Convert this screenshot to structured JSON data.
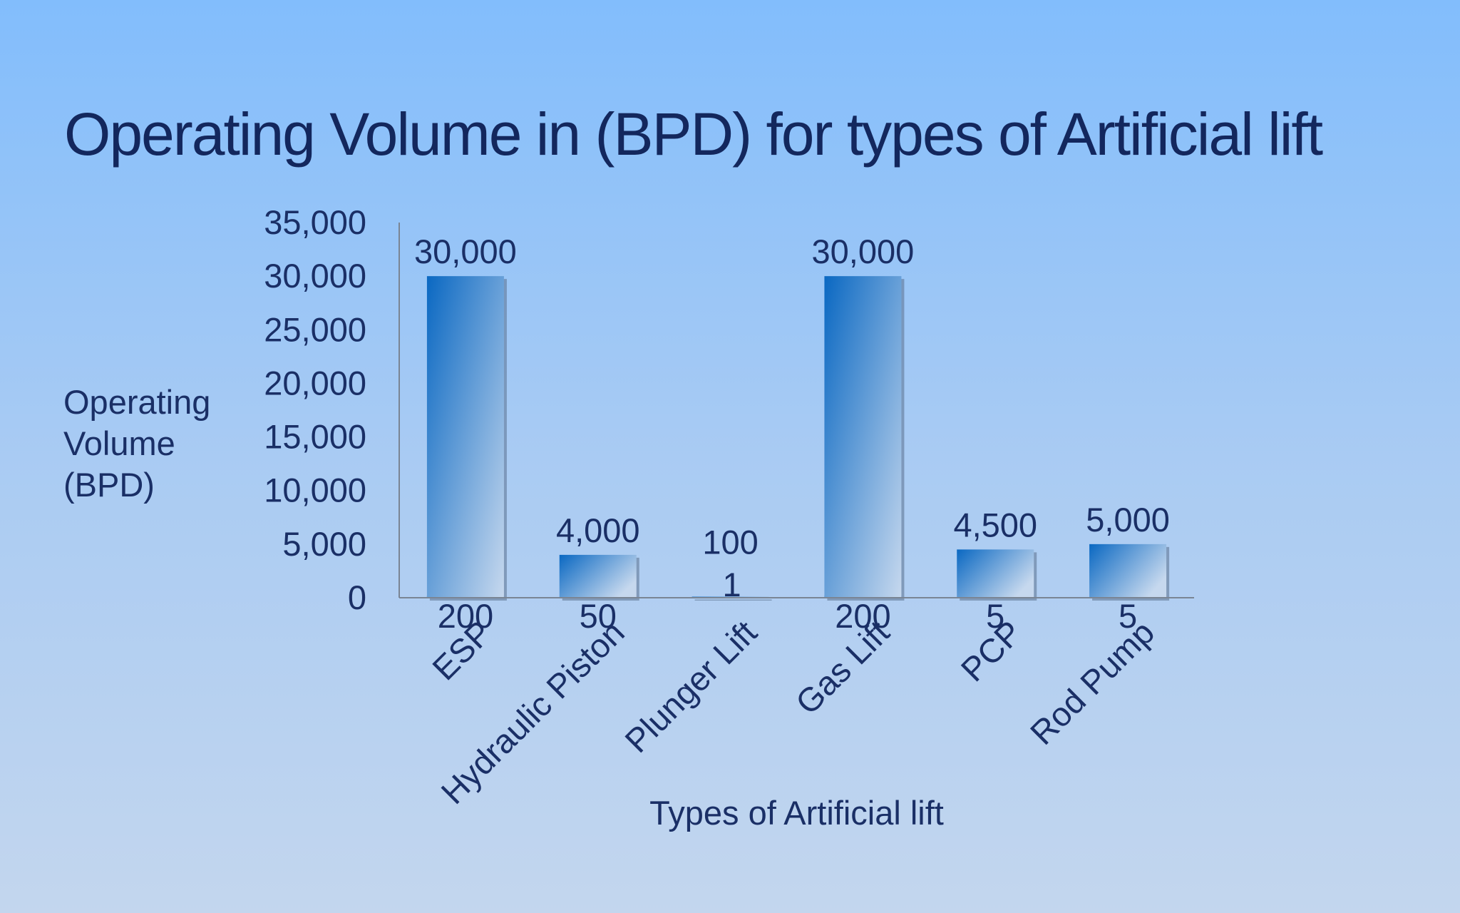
{
  "chart_data": {
    "type": "bar",
    "title": "Operating Volume in (BPD) for types of Artificial lift",
    "xlabel": "Types of Artificial lift",
    "ylabel": [
      "Operating",
      "Volume",
      "(BPD)"
    ],
    "categories": [
      "ESP",
      "Hydraulic Piston",
      "Plunger Lift",
      "Gas Lift",
      "PCP",
      "Rod Pump"
    ],
    "series": [
      {
        "values": [
          200,
          50,
          1,
          200,
          5,
          5
        ],
        "labels": [
          "200",
          "50",
          "1",
          "200",
          "5",
          "5"
        ]
      },
      {
        "values": [
          30000,
          4000,
          100,
          30000,
          4500,
          5000
        ],
        "labels": [
          "30,000",
          "4,000",
          "100",
          "30,000",
          "4,500",
          "5,000"
        ]
      }
    ],
    "ylim": [
      0,
      35000
    ],
    "yticks": [
      0,
      5000,
      10000,
      15000,
      20000,
      25000,
      30000,
      35000
    ],
    "ytick_labels": [
      "0",
      "5,000",
      "10,000",
      "15,000",
      "20,000",
      "25,000",
      "30,000",
      "35,000"
    ],
    "grid": false,
    "colors": {
      "bar_top": "#0a68c2",
      "bar_bottom": "#c6d8ee",
      "text": "#1a2f66",
      "axis": "#7a8594"
    }
  }
}
